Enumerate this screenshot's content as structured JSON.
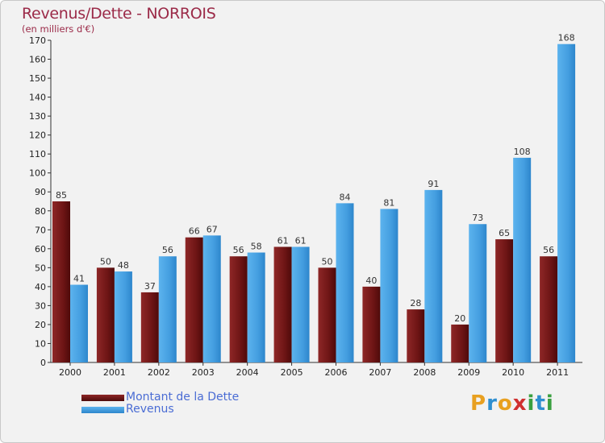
{
  "title": "Revenus/Dette - NORROIS",
  "subtitle": "(en milliers d'€)",
  "brand": {
    "letters": [
      "P",
      "r",
      "o",
      "x",
      "i",
      "t",
      "i"
    ],
    "colors": [
      "#e8a020",
      "#2f8fd0",
      "#e8a020",
      "#d03030",
      "#3aa040",
      "#2f8fd0",
      "#3aa040"
    ]
  },
  "chart_data": {
    "type": "bar",
    "title": "Revenus/Dette - NORROIS",
    "subtitle": "(en milliers d'€)",
    "categories": [
      "2000",
      "2001",
      "2002",
      "2003",
      "2004",
      "2005",
      "2006",
      "2007",
      "2008",
      "2009",
      "2010",
      "2011"
    ],
    "series": [
      {
        "name": "Montant de la Dette",
        "values": [
          85,
          50,
          37,
          66,
          56,
          61,
          50,
          40,
          28,
          20,
          65,
          56
        ],
        "color": "#7a1b1b"
      },
      {
        "name": "Revenus",
        "values": [
          41,
          48,
          56,
          67,
          58,
          61,
          84,
          81,
          91,
          73,
          108,
          168
        ],
        "color": "#4ea6e6"
      }
    ],
    "ylim": [
      0,
      170
    ],
    "yticks": [
      0,
      10,
      20,
      30,
      40,
      50,
      60,
      70,
      80,
      90,
      100,
      110,
      120,
      130,
      140,
      150,
      160,
      170
    ],
    "grid": false,
    "legend": "bottom-left"
  }
}
